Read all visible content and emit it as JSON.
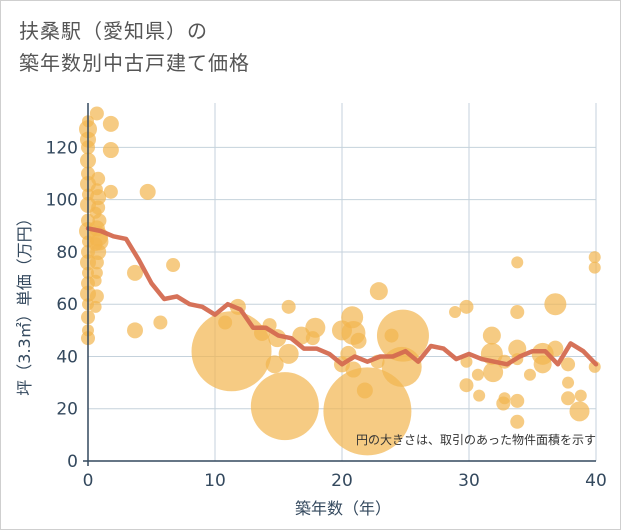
{
  "chart_data": {
    "type": "scatter",
    "title": [
      "扶桑駅（愛知県）の",
      "築年数別中古戸建て価格"
    ],
    "xlabel": "築年数（年）",
    "ylabel": "坪（3.3㎡）単価（万円）",
    "xlim": [
      0,
      40
    ],
    "ylim": [
      0,
      137
    ],
    "xticks": [
      0,
      10,
      20,
      30,
      40
    ],
    "yticks": [
      0,
      20,
      40,
      60,
      80,
      100,
      120
    ],
    "note": "円の大きさは、取引のあった物件面積を示す",
    "colors": {
      "bubble": "#f2b54f",
      "trend": "#d46a50",
      "grid": "#c5d2dc",
      "axis": "#34495e"
    },
    "bubbles": [
      {
        "x": 0,
        "y": 130,
        "s": 6
      },
      {
        "x": 0,
        "y": 127,
        "s": 9
      },
      {
        "x": 0,
        "y": 123,
        "s": 8
      },
      {
        "x": 0,
        "y": 120,
        "s": 7
      },
      {
        "x": 0,
        "y": 115,
        "s": 8
      },
      {
        "x": 0,
        "y": 110,
        "s": 7
      },
      {
        "x": 0,
        "y": 106,
        "s": 8
      },
      {
        "x": 0,
        "y": 102,
        "s": 6
      },
      {
        "x": 0,
        "y": 98,
        "s": 8
      },
      {
        "x": 0,
        "y": 92,
        "s": 7
      },
      {
        "x": 0,
        "y": 88,
        "s": 9
      },
      {
        "x": 0,
        "y": 84,
        "s": 6
      },
      {
        "x": 0,
        "y": 80,
        "s": 7
      },
      {
        "x": 0,
        "y": 76,
        "s": 8
      },
      {
        "x": 0,
        "y": 72,
        "s": 6
      },
      {
        "x": 0,
        "y": 68,
        "s": 7
      },
      {
        "x": 0,
        "y": 64,
        "s": 8
      },
      {
        "x": 0,
        "y": 60,
        "s": 6
      },
      {
        "x": 0,
        "y": 55,
        "s": 7
      },
      {
        "x": 0,
        "y": 50,
        "s": 6
      },
      {
        "x": 0,
        "y": 47,
        "s": 7
      },
      {
        "x": 0.7,
        "y": 133,
        "s": 7
      },
      {
        "x": 0.8,
        "y": 108,
        "s": 7
      },
      {
        "x": 0.7,
        "y": 104,
        "s": 6
      },
      {
        "x": 0.8,
        "y": 101,
        "s": 8
      },
      {
        "x": 0.8,
        "y": 97,
        "s": 7
      },
      {
        "x": 0.6,
        "y": 95,
        "s": 6
      },
      {
        "x": 0.9,
        "y": 92,
        "s": 7
      },
      {
        "x": 0.7,
        "y": 89,
        "s": 8
      },
      {
        "x": 0.8,
        "y": 86,
        "s": 10
      },
      {
        "x": 0.6,
        "y": 83,
        "s": 7
      },
      {
        "x": 0.8,
        "y": 80,
        "s": 8
      },
      {
        "x": 0.7,
        "y": 76,
        "s": 7
      },
      {
        "x": 0.7,
        "y": 72,
        "s": 6
      },
      {
        "x": 0.6,
        "y": 69,
        "s": 6
      },
      {
        "x": 0.7,
        "y": 63,
        "s": 7
      },
      {
        "x": 0.6,
        "y": 59,
        "s": 6
      },
      {
        "x": 0.9,
        "y": 84,
        "s": 9
      },
      {
        "x": 1.8,
        "y": 129,
        "s": 8
      },
      {
        "x": 1.8,
        "y": 119,
        "s": 8
      },
      {
        "x": 1.8,
        "y": 103,
        "s": 7
      },
      {
        "x": 4.7,
        "y": 103,
        "s": 8
      },
      {
        "x": 3.7,
        "y": 72,
        "s": 8
      },
      {
        "x": 3.7,
        "y": 50,
        "s": 8
      },
      {
        "x": 5.7,
        "y": 53,
        "s": 7
      },
      {
        "x": 6.7,
        "y": 75,
        "s": 7
      },
      {
        "x": 10.8,
        "y": 53,
        "s": 7
      },
      {
        "x": 11.8,
        "y": 59,
        "s": 8
      },
      {
        "x": 11.3,
        "y": 42,
        "s": 40
      },
      {
        "x": 13.7,
        "y": 49,
        "s": 8
      },
      {
        "x": 14.3,
        "y": 52,
        "s": 7
      },
      {
        "x": 14.7,
        "y": 37,
        "s": 9
      },
      {
        "x": 14.9,
        "y": 47,
        "s": 9
      },
      {
        "x": 15.5,
        "y": 21,
        "s": 34
      },
      {
        "x": 15.8,
        "y": 41,
        "s": 10
      },
      {
        "x": 15.8,
        "y": 59,
        "s": 7
      },
      {
        "x": 16.8,
        "y": 48,
        "s": 9
      },
      {
        "x": 17.9,
        "y": 51,
        "s": 10
      },
      {
        "x": 17.7,
        "y": 47,
        "s": 7
      },
      {
        "x": 20.0,
        "y": 50,
        "s": 10
      },
      {
        "x": 20.0,
        "y": 37,
        "s": 8
      },
      {
        "x": 20.5,
        "y": 41,
        "s": 8
      },
      {
        "x": 20.8,
        "y": 55,
        "s": 11
      },
      {
        "x": 20.9,
        "y": 49,
        "s": 12
      },
      {
        "x": 20.9,
        "y": 35,
        "s": 8
      },
      {
        "x": 21.3,
        "y": 46,
        "s": 8
      },
      {
        "x": 21.8,
        "y": 27,
        "s": 8
      },
      {
        "x": 22.0,
        "y": 19,
        "s": 44
      },
      {
        "x": 22.9,
        "y": 65,
        "s": 9
      },
      {
        "x": 22.8,
        "y": 38,
        "s": 7
      },
      {
        "x": 23.9,
        "y": 48,
        "s": 7
      },
      {
        "x": 24.7,
        "y": 36,
        "s": 20
      },
      {
        "x": 24.8,
        "y": 48,
        "s": 26
      },
      {
        "x": 28.9,
        "y": 57,
        "s": 6
      },
      {
        "x": 29.8,
        "y": 59,
        "s": 7
      },
      {
        "x": 29.8,
        "y": 38,
        "s": 6
      },
      {
        "x": 29.8,
        "y": 29,
        "s": 7
      },
      {
        "x": 30.7,
        "y": 33,
        "s": 6
      },
      {
        "x": 30.8,
        "y": 25,
        "s": 6
      },
      {
        "x": 31.8,
        "y": 48,
        "s": 9
      },
      {
        "x": 31.8,
        "y": 41,
        "s": 11
      },
      {
        "x": 31.9,
        "y": 34,
        "s": 10
      },
      {
        "x": 32.7,
        "y": 22,
        "s": 7
      },
      {
        "x": 32.8,
        "y": 24,
        "s": 6
      },
      {
        "x": 32.8,
        "y": 38,
        "s": 7
      },
      {
        "x": 33.8,
        "y": 76,
        "s": 6
      },
      {
        "x": 33.8,
        "y": 57,
        "s": 7
      },
      {
        "x": 33.8,
        "y": 43,
        "s": 9
      },
      {
        "x": 33.8,
        "y": 23,
        "s": 7
      },
      {
        "x": 33.8,
        "y": 15,
        "s": 7
      },
      {
        "x": 33.8,
        "y": 39,
        "s": 6
      },
      {
        "x": 34.8,
        "y": 33,
        "s": 6
      },
      {
        "x": 35.8,
        "y": 41,
        "s": 11
      },
      {
        "x": 35.8,
        "y": 37,
        "s": 9
      },
      {
        "x": 36.8,
        "y": 60,
        "s": 11
      },
      {
        "x": 36.8,
        "y": 43,
        "s": 8
      },
      {
        "x": 37.8,
        "y": 37,
        "s": 7
      },
      {
        "x": 37.8,
        "y": 30,
        "s": 6
      },
      {
        "x": 37.8,
        "y": 24,
        "s": 7
      },
      {
        "x": 38.7,
        "y": 19,
        "s": 10
      },
      {
        "x": 38.8,
        "y": 25,
        "s": 6
      },
      {
        "x": 39.9,
        "y": 78,
        "s": 6
      },
      {
        "x": 39.9,
        "y": 74,
        "s": 6
      },
      {
        "x": 39.9,
        "y": 36,
        "s": 6
      }
    ],
    "trend": {
      "x": [
        0,
        1,
        2,
        3,
        4,
        5,
        6,
        7,
        8,
        9,
        10,
        11,
        12,
        13,
        14,
        15,
        16,
        17,
        18,
        19,
        20,
        21,
        22,
        23,
        24,
        25,
        26,
        27,
        28,
        29,
        30,
        31,
        32,
        33,
        34,
        35,
        36,
        37,
        38,
        39,
        40
      ],
      "y": [
        89,
        88,
        86,
        85,
        77,
        68,
        62,
        63,
        60,
        59,
        56,
        60,
        58,
        51,
        51,
        48,
        47,
        43,
        43,
        41,
        37,
        40,
        38,
        40,
        40,
        42,
        38,
        44,
        43,
        39,
        41,
        39,
        38,
        37,
        40,
        42,
        42,
        37,
        45,
        42,
        37
      ]
    }
  }
}
